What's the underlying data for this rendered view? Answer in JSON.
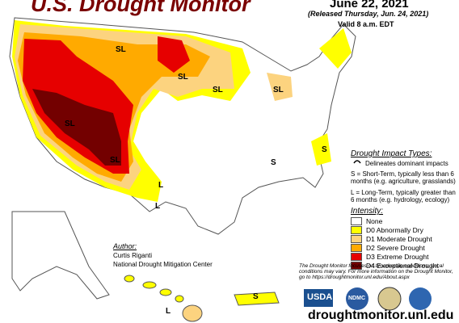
{
  "header": {
    "title": "U.S. Drought Monitor",
    "date": "June 22, 2021",
    "released": "(Released Thursday, Jun. 24, 2021)",
    "valid": "Valid 8 a.m. EDT"
  },
  "impact_types": {
    "heading": "Drought Impact Types:",
    "delineates": "Delineates dominant impacts",
    "short": "S = Short-Term, typically less than 6 months (e.g. agriculture, grasslands)",
    "long": "L = Long-Term, typically greater than 6 months (e.g. hydrology, ecology)"
  },
  "intensity": {
    "heading": "Intensity:",
    "items": [
      {
        "label": "None",
        "color": "#ffffff"
      },
      {
        "label": "D0 Abnormally Dry",
        "color": "#ffff00"
      },
      {
        "label": "D1 Moderate Drought",
        "color": "#fcd37f"
      },
      {
        "label": "D2 Severe Drought",
        "color": "#ffaa00"
      },
      {
        "label": "D3 Extreme Drought",
        "color": "#e60000"
      },
      {
        "label": "D4 Exceptional Drought",
        "color": "#730000"
      }
    ]
  },
  "author": {
    "heading": "Author:",
    "name": "Curtis Riganti",
    "org": "National Drought Mitigation Center"
  },
  "note": "The Drought Monitor focuses on broad-scale conditions. Local conditions may vary. For more information on the Drought Monitor, go to https://droughtmonitor.unl.edu/About.aspx",
  "url": "droughtmonitor.unl.edu",
  "logos": [
    "USDA",
    "NDMC"
  ],
  "map_labels": [
    "SL",
    "SL",
    "SL",
    "SL",
    "SL",
    "SL",
    "L",
    "S",
    "S",
    "L",
    "S",
    "L"
  ]
}
